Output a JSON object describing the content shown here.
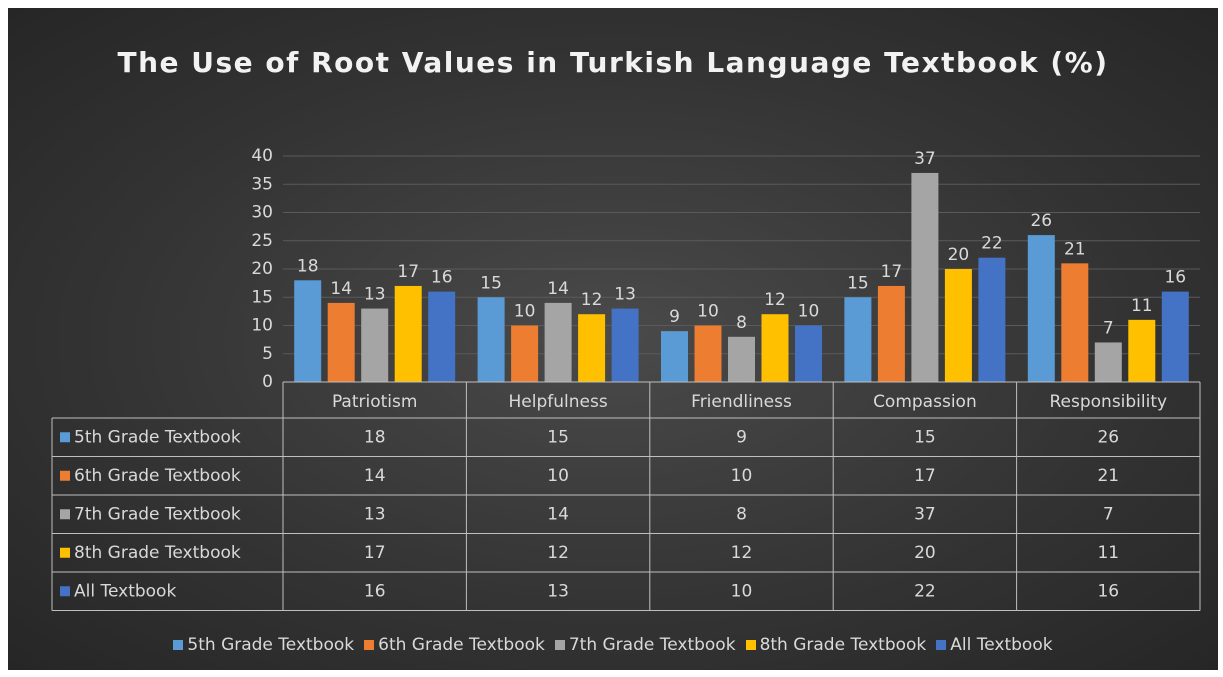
{
  "chart_data": {
    "type": "bar",
    "title": "The Use of Root Values in Turkish Language Textbook (%)",
    "categories": [
      "Patriotism",
      "Helpfulness",
      "Friendliness",
      "Compassion",
      "Responsibility"
    ],
    "series": [
      {
        "name": "5th Grade Textbook",
        "color": "#5b9bd5",
        "values": [
          18,
          15,
          9,
          15,
          26
        ]
      },
      {
        "name": "6th Grade Textbook",
        "color": "#ed7d31",
        "values": [
          14,
          10,
          10,
          17,
          21
        ]
      },
      {
        "name": "7th Grade Textbook",
        "color": "#a5a5a5",
        "values": [
          13,
          14,
          8,
          37,
          7
        ]
      },
      {
        "name": "8th Grade Textbook",
        "color": "#ffc000",
        "values": [
          17,
          12,
          12,
          20,
          11
        ]
      },
      {
        "name": "All Textbook",
        "color": "#4472c4",
        "values": [
          16,
          13,
          10,
          22,
          16
        ]
      }
    ],
    "ylim": [
      0,
      40
    ],
    "yticks": [
      0,
      5,
      10,
      15,
      20,
      25,
      30,
      35,
      40
    ],
    "grid": true,
    "legend": "bottom",
    "data_table": true
  }
}
